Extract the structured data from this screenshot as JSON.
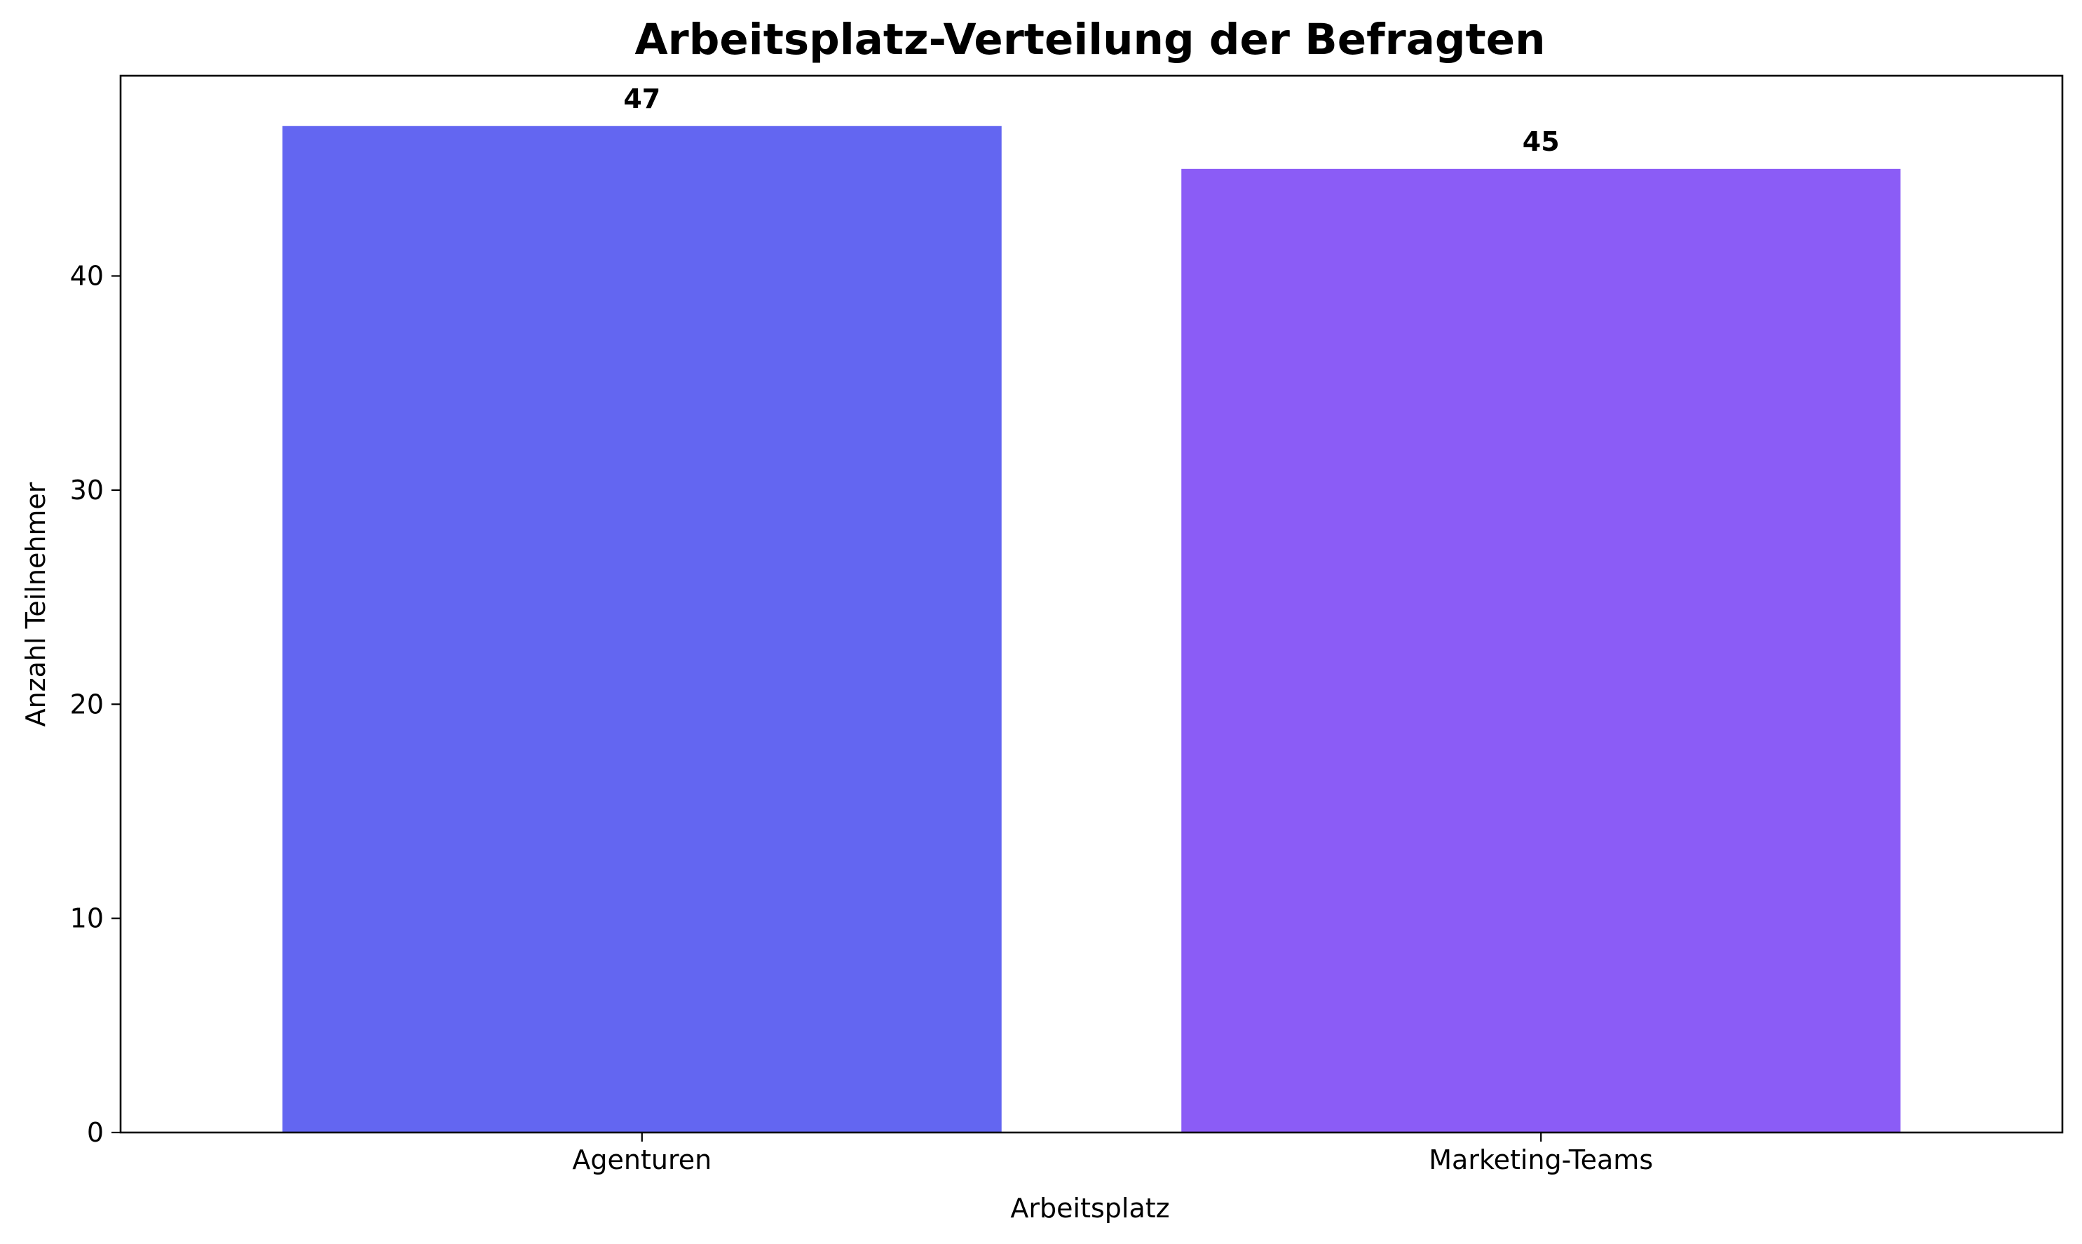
{
  "chart_data": {
    "type": "bar",
    "title": "Arbeitsplatz-Verteilung der Befragten",
    "xlabel": "Arbeitsplatz",
    "ylabel": "Anzahl Teilnehmer",
    "categories": [
      "Agenturen",
      "Marketing-Teams"
    ],
    "values": [
      47,
      45
    ],
    "data_labels": [
      "47",
      "45"
    ],
    "colors": [
      "#6366f1",
      "#8b5cf6"
    ],
    "ylim": [
      0,
      49.35
    ],
    "yticks": [
      0,
      10,
      20,
      30,
      40
    ],
    "grid": false,
    "legend": "none"
  }
}
